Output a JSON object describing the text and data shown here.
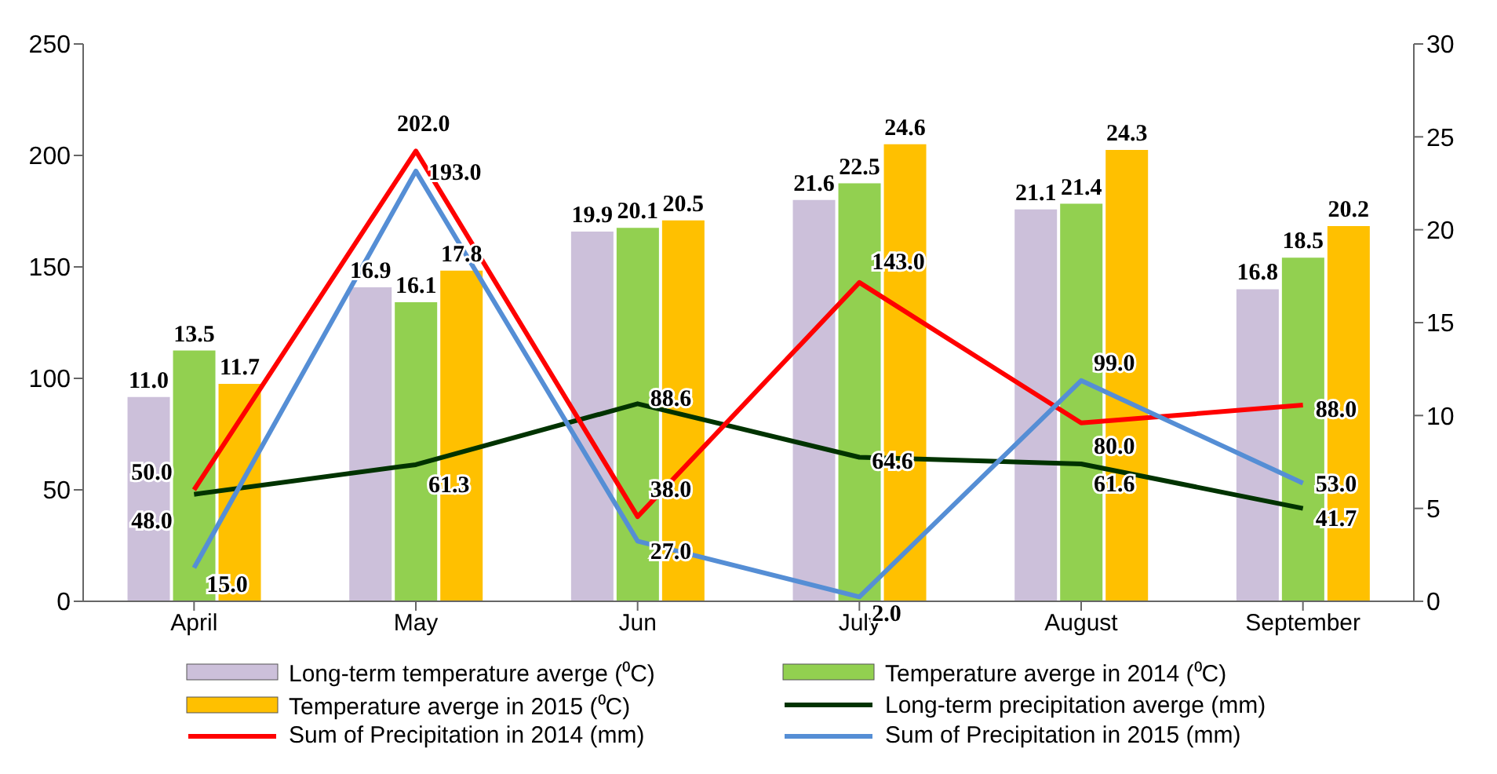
{
  "chart_data": {
    "type": "bar",
    "categories": [
      "April",
      "May",
      "Jun",
      "July",
      "August",
      "September"
    ],
    "series": [
      {
        "name": "Long-term temperature averge (⁰C)",
        "axis": "y2",
        "color": "#ccc0da",
        "values": [
          11.0,
          16.9,
          19.9,
          21.6,
          21.1,
          16.8
        ],
        "value_labels": [
          "11.0",
          "16.9",
          "19.9",
          "21.6",
          "21.1",
          "16.8"
        ]
      },
      {
        "name": "Temperature averge in 2014 (⁰C)",
        "axis": "y2",
        "color": "#92d050",
        "values": [
          13.5,
          16.1,
          20.1,
          22.5,
          21.4,
          18.5
        ],
        "value_labels": [
          "13.5",
          "16.1",
          "20.1",
          "22.5",
          "21.4",
          "18.5"
        ]
      },
      {
        "name": "Temperature averge in 2015 (⁰C)",
        "axis": "y2",
        "color": "#ffc000",
        "values": [
          11.7,
          17.8,
          20.5,
          24.6,
          24.3,
          20.2
        ],
        "value_labels": [
          "11.7",
          "17.8",
          "20.5",
          "24.6",
          "24.3",
          "20.2"
        ]
      },
      {
        "name": "Long-term precipitation averge (mm)",
        "type": "line",
        "color": "#003300",
        "values": [
          48.0,
          61.3,
          88.6,
          64.6,
          61.6,
          41.7
        ],
        "value_labels": [
          "48.0",
          "61.3",
          "88.6",
          "64.6",
          "61.6",
          "41.7"
        ]
      },
      {
        "name": "Sum of Precipitation  in 2014 (mm)",
        "type": "line",
        "color": "#ff0000",
        "values": [
          50.0,
          202.0,
          38.0,
          143.0,
          80.0,
          88.0
        ],
        "value_labels": [
          "50.0",
          "202.0",
          "38.0",
          "143.0",
          "80.0",
          "88.0"
        ]
      },
      {
        "name": "Sum of Precipitation in 2015  (mm)",
        "type": "line",
        "color": "#558ed5",
        "values": [
          15.0,
          193.0,
          27.0,
          2.0,
          99.0,
          53.0
        ],
        "value_labels": [
          "15.0",
          "193.0",
          "27.0",
          "2.0",
          "99.0",
          "53.0"
        ]
      }
    ],
    "ylim": [
      0,
      250
    ],
    "yticks": [
      0,
      50,
      100,
      150,
      200,
      250
    ],
    "y2lim": [
      0,
      30
    ],
    "y2ticks": [
      0,
      5,
      10,
      15,
      20,
      25,
      30
    ],
    "legend": "bottom",
    "marker": "none",
    "line_style": "solid"
  }
}
